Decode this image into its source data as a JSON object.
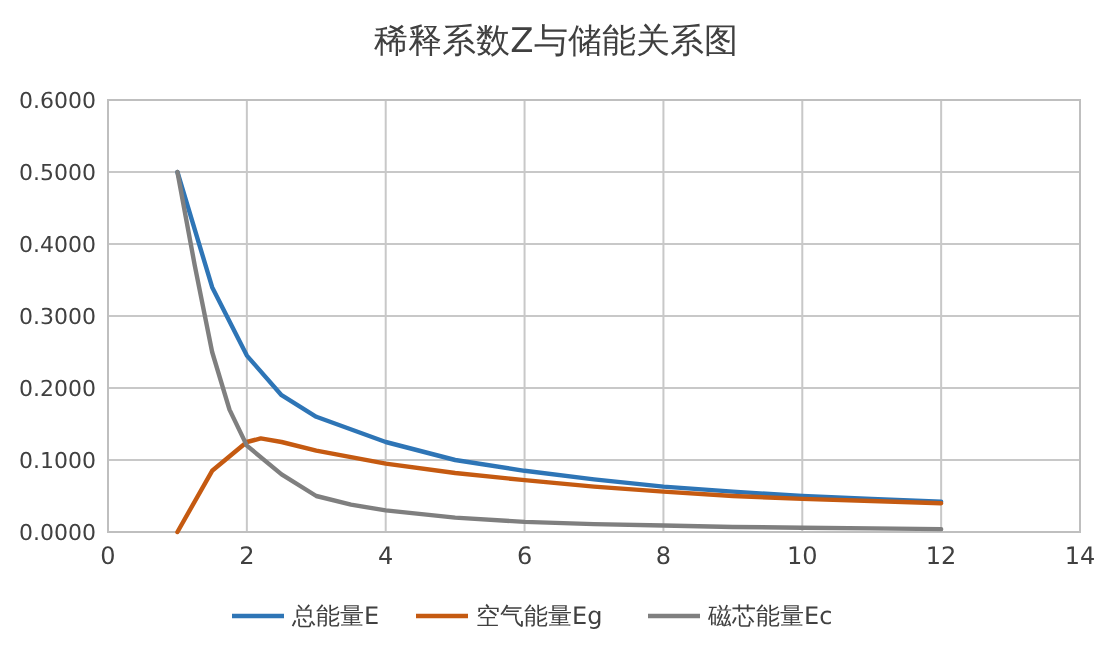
{
  "chart_data": {
    "type": "line",
    "title": "稀释系数Z与储能关系图",
    "xlim": [
      0,
      14
    ],
    "xticks": [
      0,
      2,
      4,
      6,
      8,
      10,
      12,
      14
    ],
    "ylim": [
      0,
      0.6
    ],
    "yticks": [
      {
        "value": 0,
        "label": "0.0000"
      },
      {
        "value": 0.1,
        "label": "0.1000"
      },
      {
        "value": 0.2,
        "label": "0.2000"
      },
      {
        "value": 0.3,
        "label": "0.3000"
      },
      {
        "value": 0.4,
        "label": "0.4000"
      },
      {
        "value": 0.5,
        "label": "0.5000"
      },
      {
        "value": 0.6,
        "label": "0.6000"
      }
    ],
    "grid": true,
    "legend": "bottom",
    "marker": "none",
    "line_style": "solid",
    "series": [
      {
        "name": "总能量E",
        "color": "#2e75b6",
        "x": [
          1,
          1.5,
          2,
          2.5,
          3,
          4,
          5,
          6,
          7,
          8,
          9,
          10,
          11,
          12
        ],
        "values": [
          0.5,
          0.34,
          0.245,
          0.19,
          0.16,
          0.125,
          0.1,
          0.085,
          0.073,
          0.063,
          0.056,
          0.05,
          0.046,
          0.042
        ]
      },
      {
        "name": "空气能量Eg",
        "color": "#c55a11",
        "x": [
          1,
          1.5,
          2,
          2.2,
          2.5,
          3,
          4,
          5,
          6,
          7,
          8,
          9,
          10,
          11,
          12
        ],
        "values": [
          0,
          0.085,
          0.125,
          0.13,
          0.125,
          0.113,
          0.095,
          0.082,
          0.072,
          0.063,
          0.056,
          0.05,
          0.046,
          0.043,
          0.04
        ]
      },
      {
        "name": "磁芯能量Ec",
        "color": "#7f7f7f",
        "x": [
          1,
          1.25,
          1.5,
          1.75,
          2,
          2.5,
          3,
          3.5,
          4,
          5,
          6,
          7,
          8,
          9,
          10,
          11,
          12
        ],
        "values": [
          0.5,
          0.37,
          0.25,
          0.17,
          0.12,
          0.08,
          0.05,
          0.038,
          0.03,
          0.02,
          0.014,
          0.011,
          0.009,
          0.007,
          0.006,
          0.005,
          0.004
        ]
      }
    ]
  }
}
